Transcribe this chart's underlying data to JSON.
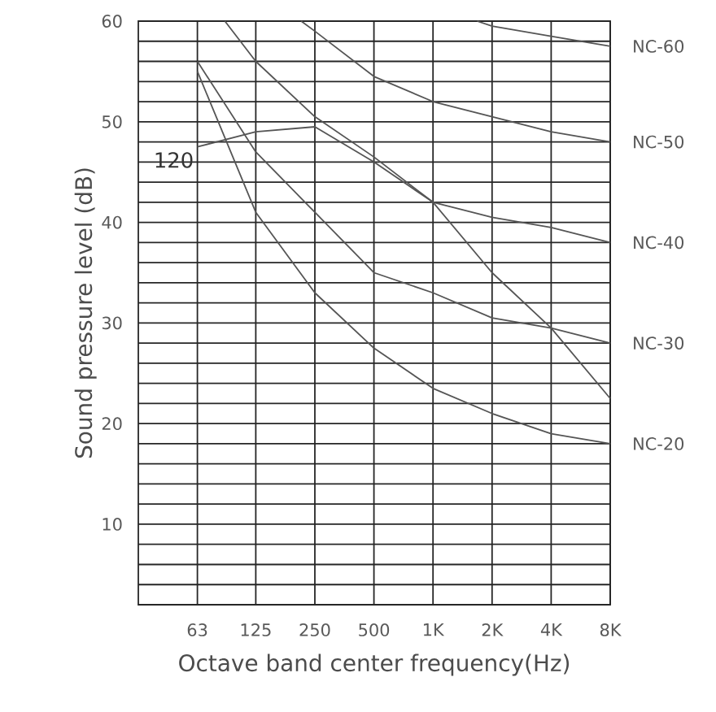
{
  "chart_data": {
    "type": "line",
    "xlabel": "Octave band center frequency(Hz)",
    "ylabel": "Sound pressure level (dB)",
    "log": "x",
    "grid": true,
    "xlim": [
      31.5,
      8000
    ],
    "ylim": [
      2,
      60
    ],
    "xticks": [
      63,
      125,
      250,
      500,
      {
        "value": 1000,
        "label": "1K"
      },
      {
        "value": 2000,
        "label": "2K"
      },
      {
        "value": 4000,
        "label": "4K"
      },
      {
        "value": 8000,
        "label": "8K"
      }
    ],
    "yticks": [
      {
        "value": 4,
        "label": null
      },
      {
        "value": 6,
        "label": null
      },
      {
        "value": 8,
        "label": null
      },
      10,
      {
        "value": 12,
        "label": null
      },
      {
        "value": 14,
        "label": null
      },
      {
        "value": 16,
        "label": null
      },
      {
        "value": 18,
        "label": null
      },
      20,
      {
        "value": 22,
        "label": null
      },
      {
        "value": 24,
        "label": null
      },
      {
        "value": 26,
        "label": null
      },
      {
        "value": 28,
        "label": null
      },
      30,
      {
        "value": 32,
        "label": null
      },
      {
        "value": 34,
        "label": null
      },
      {
        "value": 36,
        "label": null
      },
      {
        "value": 38,
        "label": null
      },
      40,
      {
        "value": 42,
        "label": null
      },
      {
        "value": 44,
        "label": null
      },
      {
        "value": 46,
        "label": null
      },
      {
        "value": 48,
        "label": null
      },
      50,
      {
        "value": 52,
        "label": null
      },
      {
        "value": 54,
        "label": null
      },
      {
        "value": 56,
        "label": null
      },
      {
        "value": 58,
        "label": null
      },
      60
    ],
    "series": [
      {
        "name": "NC-60",
        "color": "#555555",
        "x": [
          1680,
          2000,
          4000,
          8000
        ],
        "values": [
          60,
          59.5,
          58.5,
          57.5
        ]
      },
      {
        "name": "NC-50",
        "color": "#555555",
        "x": [
          213,
          250,
          500,
          1000,
          2000,
          4000,
          8000
        ],
        "values": [
          60,
          59,
          54.5,
          52,
          50.5,
          49,
          48
        ]
      },
      {
        "name": "NC-40",
        "color": "#555555",
        "x": [
          87,
          125,
          250,
          500,
          1000,
          2000,
          4000,
          8000
        ],
        "values": [
          60,
          56,
          50.5,
          46.5,
          42,
          40.5,
          39.5,
          38
        ]
      },
      {
        "name": "NC-30",
        "color": "#555555",
        "x": [
          63,
          125,
          250,
          500,
          1000,
          2000,
          4000,
          8000
        ],
        "values": [
          56,
          47,
          41,
          35,
          33,
          30.5,
          29.5,
          28
        ]
      },
      {
        "name": "NC-20",
        "color": "#555555",
        "x": [
          63,
          125,
          250,
          500,
          1000,
          2000,
          4000,
          8000
        ],
        "values": [
          55,
          41,
          33,
          27.5,
          23.5,
          21,
          19,
          18
        ]
      },
      {
        "color": "#555555",
        "x": [
          63,
          125,
          250,
          500,
          1000,
          2000,
          4000,
          8000
        ],
        "values": [
          47.5,
          49,
          49.5,
          46,
          42,
          35,
          29.5,
          22.5
        ]
      }
    ],
    "annotations": [
      {
        "text": "120",
        "x": 63,
        "y": 47.5
      }
    ]
  }
}
